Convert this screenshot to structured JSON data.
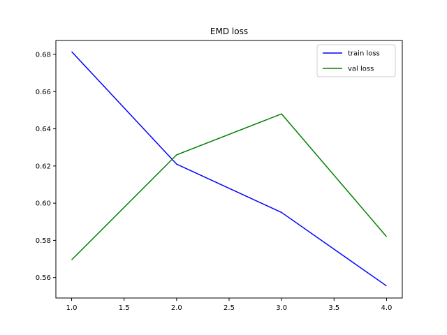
{
  "chart_data": {
    "type": "line",
    "title": "EMD loss",
    "xlabel": "",
    "ylabel": "",
    "x": [
      1.0,
      2.0,
      3.0,
      4.0
    ],
    "xlim": [
      0.85,
      4.15
    ],
    "ylim": [
      0.549,
      0.6875
    ],
    "xticks": [
      1.0,
      1.5,
      2.0,
      2.5,
      3.0,
      3.5,
      4.0
    ],
    "xtick_labels": [
      "1.0",
      "1.5",
      "2.0",
      "2.5",
      "3.0",
      "3.5",
      "4.0"
    ],
    "yticks": [
      0.56,
      0.58,
      0.6,
      0.62,
      0.64,
      0.66,
      0.68
    ],
    "ytick_labels": [
      "0.56",
      "0.58",
      "0.60",
      "0.62",
      "0.64",
      "0.66",
      "0.68"
    ],
    "grid": false,
    "legend_position": "top-right",
    "series": [
      {
        "name": "train loss",
        "color": "#0000ff",
        "values": [
          0.6815,
          0.621,
          0.595,
          0.5555
        ]
      },
      {
        "name": "val loss",
        "color": "#008000",
        "values": [
          0.5695,
          0.626,
          0.648,
          0.582
        ]
      }
    ]
  }
}
